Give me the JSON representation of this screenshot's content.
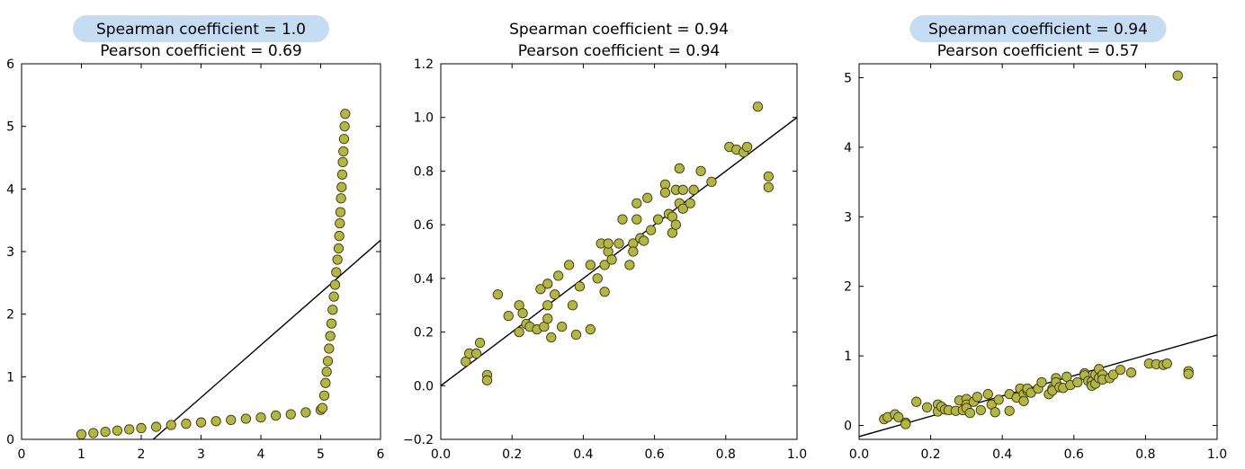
{
  "colors": {
    "marker_fill": "#b5b544",
    "marker_edge": "#3a3a12",
    "fit_line": "#000000",
    "highlight": "#c6dcf2"
  },
  "chart_data": [
    {
      "type": "scatter",
      "title": "Spearman coefficient = 1.0",
      "subtitle": "Pearson coefficient = 0.69",
      "title_highlighted": true,
      "xlim": [
        0,
        6
      ],
      "ylim": [
        0,
        6
      ],
      "xticks": [
        0,
        1,
        2,
        3,
        4,
        5,
        6
      ],
      "yticks": [
        0,
        1,
        2,
        3,
        4,
        5,
        6
      ],
      "tick_labels_x": [
        "0",
        "1",
        "2",
        "3",
        "4",
        "5",
        "6"
      ],
      "tick_labels_y": [
        "0",
        "1",
        "2",
        "3",
        "4",
        "5",
        "6"
      ],
      "fit_line": [
        [
          2.2,
          0
        ],
        [
          6,
          3.18
        ]
      ],
      "points": [
        [
          1.0,
          0.08
        ],
        [
          1.2,
          0.1
        ],
        [
          1.4,
          0.12
        ],
        [
          1.6,
          0.14
        ],
        [
          1.8,
          0.16
        ],
        [
          2.0,
          0.18
        ],
        [
          2.25,
          0.2
        ],
        [
          2.5,
          0.23
        ],
        [
          2.75,
          0.25
        ],
        [
          3.0,
          0.27
        ],
        [
          3.25,
          0.29
        ],
        [
          3.5,
          0.31
        ],
        [
          3.75,
          0.33
        ],
        [
          4.0,
          0.35
        ],
        [
          4.25,
          0.38
        ],
        [
          4.5,
          0.4
        ],
        [
          4.75,
          0.43
        ],
        [
          5.0,
          0.47
        ],
        [
          5.03,
          0.5
        ],
        [
          5.06,
          0.7
        ],
        [
          5.08,
          0.9
        ],
        [
          5.1,
          1.08
        ],
        [
          5.12,
          1.25
        ],
        [
          5.14,
          1.45
        ],
        [
          5.16,
          1.65
        ],
        [
          5.18,
          1.85
        ],
        [
          5.2,
          2.07
        ],
        [
          5.22,
          2.28
        ],
        [
          5.24,
          2.47
        ],
        [
          5.26,
          2.67
        ],
        [
          5.28,
          2.87
        ],
        [
          5.3,
          3.05
        ],
        [
          5.31,
          3.25
        ],
        [
          5.32,
          3.45
        ],
        [
          5.33,
          3.63
        ],
        [
          5.34,
          3.85
        ],
        [
          5.35,
          4.03
        ],
        [
          5.36,
          4.23
        ],
        [
          5.37,
          4.43
        ],
        [
          5.38,
          4.6
        ],
        [
          5.39,
          4.8
        ],
        [
          5.4,
          5.0
        ],
        [
          5.41,
          5.2
        ]
      ]
    },
    {
      "type": "scatter",
      "title": "Spearman coefficient = 0.94",
      "subtitle": "Pearson coefficient = 0.94",
      "title_highlighted": false,
      "xlim": [
        0,
        1
      ],
      "ylim": [
        -0.2,
        1.2
      ],
      "xticks": [
        0,
        0.2,
        0.4,
        0.6,
        0.8,
        1.0
      ],
      "yticks": [
        -0.2,
        0,
        0.2,
        0.4,
        0.6,
        0.8,
        1.0,
        1.2
      ],
      "tick_labels_x": [
        "0.0",
        "0.2",
        "0.4",
        "0.6",
        "0.8",
        "1.0"
      ],
      "tick_labels_y": [
        "−0.2",
        "0.0",
        "0.2",
        "0.4",
        "0.6",
        "0.8",
        "1.0",
        "1.2"
      ],
      "fit_line": [
        [
          0,
          0.0
        ],
        [
          1,
          1.0
        ]
      ],
      "points": [
        [
          0.07,
          0.09
        ],
        [
          0.08,
          0.12
        ],
        [
          0.1,
          0.12
        ],
        [
          0.11,
          0.16
        ],
        [
          0.13,
          0.04
        ],
        [
          0.13,
          0.02
        ],
        [
          0.16,
          0.34
        ],
        [
          0.19,
          0.26
        ],
        [
          0.22,
          0.3
        ],
        [
          0.22,
          0.2
        ],
        [
          0.23,
          0.27
        ],
        [
          0.24,
          0.23
        ],
        [
          0.25,
          0.22
        ],
        [
          0.27,
          0.21
        ],
        [
          0.28,
          0.36
        ],
        [
          0.29,
          0.22
        ],
        [
          0.3,
          0.38
        ],
        [
          0.3,
          0.3
        ],
        [
          0.3,
          0.25
        ],
        [
          0.31,
          0.18
        ],
        [
          0.32,
          0.34
        ],
        [
          0.33,
          0.41
        ],
        [
          0.34,
          0.22
        ],
        [
          0.36,
          0.45
        ],
        [
          0.37,
          0.3
        ],
        [
          0.38,
          0.19
        ],
        [
          0.39,
          0.37
        ],
        [
          0.42,
          0.45
        ],
        [
          0.42,
          0.21
        ],
        [
          0.44,
          0.4
        ],
        [
          0.45,
          0.53
        ],
        [
          0.46,
          0.45
        ],
        [
          0.46,
          0.35
        ],
        [
          0.47,
          0.5
        ],
        [
          0.47,
          0.53
        ],
        [
          0.48,
          0.47
        ],
        [
          0.5,
          0.53
        ],
        [
          0.51,
          0.62
        ],
        [
          0.53,
          0.45
        ],
        [
          0.54,
          0.53
        ],
        [
          0.54,
          0.5
        ],
        [
          0.55,
          0.68
        ],
        [
          0.55,
          0.62
        ],
        [
          0.56,
          0.55
        ],
        [
          0.57,
          0.54
        ],
        [
          0.58,
          0.7
        ],
        [
          0.59,
          0.58
        ],
        [
          0.61,
          0.62
        ],
        [
          0.63,
          0.75
        ],
        [
          0.63,
          0.72
        ],
        [
          0.64,
          0.64
        ],
        [
          0.65,
          0.63
        ],
        [
          0.65,
          0.57
        ],
        [
          0.66,
          0.73
        ],
        [
          0.66,
          0.6
        ],
        [
          0.67,
          0.81
        ],
        [
          0.67,
          0.68
        ],
        [
          0.68,
          0.73
        ],
        [
          0.68,
          0.66
        ],
        [
          0.7,
          0.68
        ],
        [
          0.71,
          0.73
        ],
        [
          0.73,
          0.8
        ],
        [
          0.76,
          0.76
        ],
        [
          0.81,
          0.89
        ],
        [
          0.83,
          0.88
        ],
        [
          0.85,
          0.87
        ],
        [
          0.86,
          0.89
        ],
        [
          0.89,
          1.04
        ],
        [
          0.92,
          0.78
        ],
        [
          0.92,
          0.74
        ]
      ]
    },
    {
      "type": "scatter",
      "title": "Spearman coefficient = 0.94",
      "subtitle": "Pearson coefficient = 0.57",
      "title_highlighted": true,
      "xlim": [
        0,
        1
      ],
      "ylim": [
        -0.2,
        5.2
      ],
      "xticks": [
        0,
        0.2,
        0.4,
        0.6,
        0.8,
        1.0
      ],
      "yticks": [
        0,
        1,
        2,
        3,
        4,
        5
      ],
      "tick_labels_x": [
        "0.0",
        "0.2",
        "0.4",
        "0.6",
        "0.8",
        "1.0"
      ],
      "tick_labels_y": [
        "0",
        "1",
        "2",
        "3",
        "4",
        "5"
      ],
      "fit_line": [
        [
          0,
          -0.16
        ],
        [
          1,
          1.3
        ]
      ],
      "points": [
        [
          0.07,
          0.09
        ],
        [
          0.08,
          0.12
        ],
        [
          0.1,
          0.16
        ],
        [
          0.11,
          0.12
        ],
        [
          0.13,
          0.04
        ],
        [
          0.13,
          0.02
        ],
        [
          0.16,
          0.34
        ],
        [
          0.19,
          0.26
        ],
        [
          0.22,
          0.3
        ],
        [
          0.22,
          0.2
        ],
        [
          0.23,
          0.27
        ],
        [
          0.24,
          0.23
        ],
        [
          0.25,
          0.22
        ],
        [
          0.27,
          0.21
        ],
        [
          0.28,
          0.36
        ],
        [
          0.29,
          0.22
        ],
        [
          0.3,
          0.38
        ],
        [
          0.3,
          0.3
        ],
        [
          0.3,
          0.25
        ],
        [
          0.31,
          0.18
        ],
        [
          0.32,
          0.34
        ],
        [
          0.33,
          0.41
        ],
        [
          0.34,
          0.22
        ],
        [
          0.36,
          0.45
        ],
        [
          0.37,
          0.3
        ],
        [
          0.38,
          0.19
        ],
        [
          0.39,
          0.37
        ],
        [
          0.42,
          0.45
        ],
        [
          0.42,
          0.21
        ],
        [
          0.44,
          0.4
        ],
        [
          0.45,
          0.53
        ],
        [
          0.46,
          0.45
        ],
        [
          0.46,
          0.35
        ],
        [
          0.47,
          0.5
        ],
        [
          0.47,
          0.53
        ],
        [
          0.48,
          0.47
        ],
        [
          0.5,
          0.53
        ],
        [
          0.51,
          0.62
        ],
        [
          0.53,
          0.45
        ],
        [
          0.54,
          0.53
        ],
        [
          0.54,
          0.5
        ],
        [
          0.55,
          0.68
        ],
        [
          0.55,
          0.62
        ],
        [
          0.56,
          0.55
        ],
        [
          0.57,
          0.54
        ],
        [
          0.58,
          0.7
        ],
        [
          0.59,
          0.58
        ],
        [
          0.61,
          0.62
        ],
        [
          0.63,
          0.75
        ],
        [
          0.63,
          0.72
        ],
        [
          0.64,
          0.64
        ],
        [
          0.65,
          0.63
        ],
        [
          0.65,
          0.57
        ],
        [
          0.66,
          0.73
        ],
        [
          0.66,
          0.6
        ],
        [
          0.67,
          0.81
        ],
        [
          0.67,
          0.68
        ],
        [
          0.68,
          0.73
        ],
        [
          0.68,
          0.66
        ],
        [
          0.7,
          0.68
        ],
        [
          0.71,
          0.73
        ],
        [
          0.73,
          0.8
        ],
        [
          0.76,
          0.76
        ],
        [
          0.81,
          0.89
        ],
        [
          0.83,
          0.88
        ],
        [
          0.85,
          0.87
        ],
        [
          0.86,
          0.89
        ],
        [
          0.89,
          5.03
        ],
        [
          0.92,
          0.78
        ],
        [
          0.92,
          0.74
        ]
      ]
    }
  ]
}
